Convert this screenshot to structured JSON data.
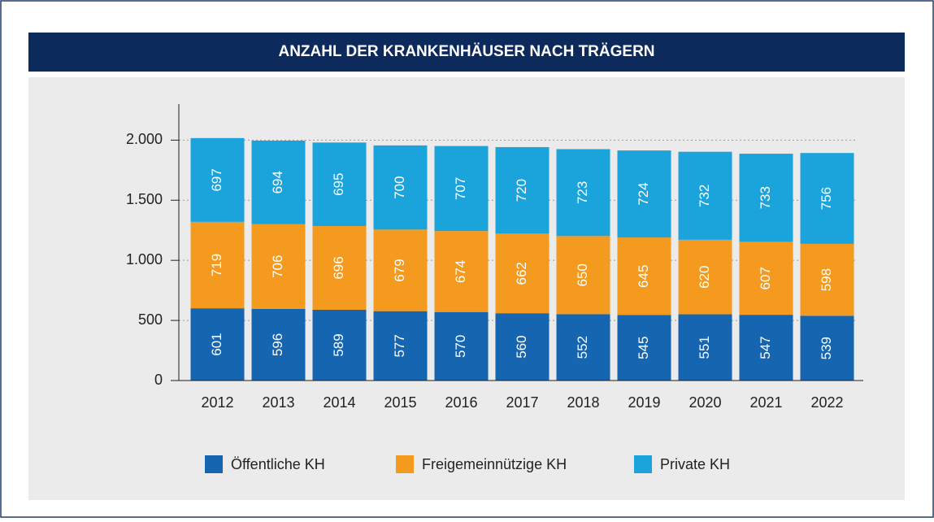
{
  "chart_data": {
    "type": "stacked_bar",
    "title": "ANZAHL DER KRANKENHÄUSER NACH TRÄGERN",
    "categories": [
      "2012",
      "2013",
      "2014",
      "2015",
      "2016",
      "2017",
      "2018",
      "2019",
      "2020",
      "2021",
      "2022"
    ],
    "series": [
      {
        "name": "Öffentliche KH",
        "color": "#1565b0",
        "values": [
          601,
          596,
          589,
          577,
          570,
          560,
          552,
          545,
          551,
          547,
          539
        ]
      },
      {
        "name": "Freigemeinnützige KH",
        "color": "#f39a1f",
        "values": [
          719,
          706,
          696,
          679,
          674,
          662,
          650,
          645,
          620,
          607,
          598
        ]
      },
      {
        "name": "Private KH",
        "color": "#1ba3dc",
        "values": [
          697,
          694,
          695,
          700,
          707,
          720,
          723,
          724,
          732,
          733,
          756
        ]
      }
    ],
    "ylim": [
      0,
      2300
    ],
    "yticks": [
      0,
      500,
      {
        "value": 1000,
        "label": "1.000"
      },
      {
        "value": 1500,
        "label": "1.500"
      },
      {
        "value": 2000,
        "label": "2.000"
      }
    ],
    "grid": true,
    "legend": "bottom"
  }
}
